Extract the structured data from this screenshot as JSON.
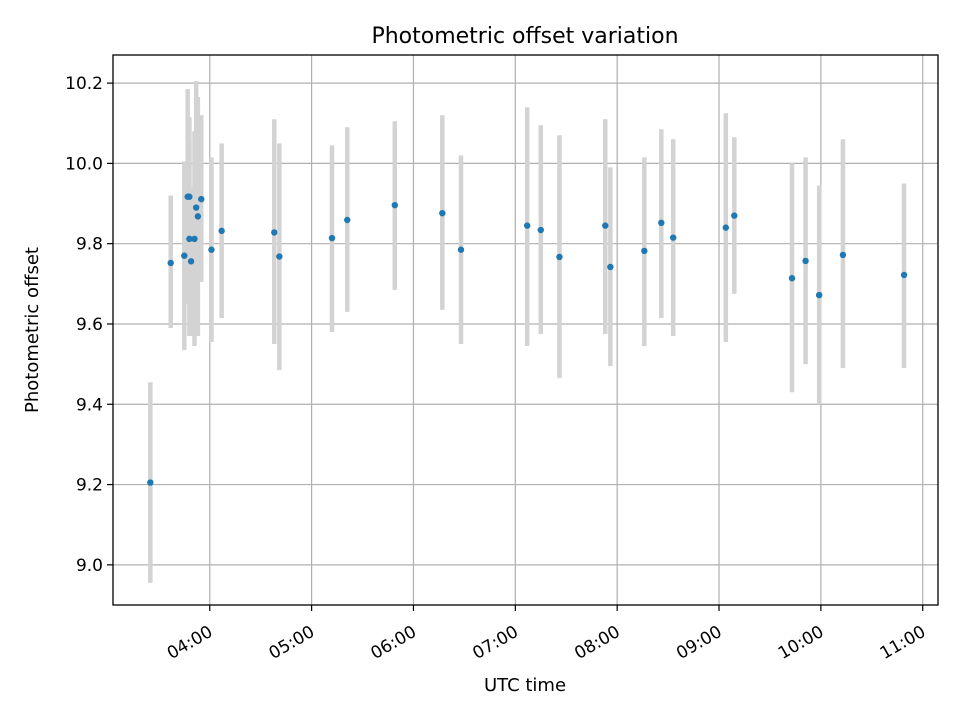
{
  "chart_data": {
    "type": "scatter",
    "title": "Photometric offset variation",
    "xlabel": "UTC time",
    "ylabel": "Photometric offset",
    "xlim": [
      "03:03",
      "11:09"
    ],
    "ylim": [
      8.9,
      10.27
    ],
    "grid": true,
    "colors": {
      "point": "#1f77b4",
      "errorbar": "#d3d3d3"
    },
    "x_ticks": [
      "04:00",
      "05:00",
      "06:00",
      "07:00",
      "08:00",
      "09:00",
      "10:00",
      "11:00"
    ],
    "y_ticks": [
      "9.0",
      "9.2",
      "9.4",
      "9.6",
      "9.8",
      "10.0",
      "10.2"
    ],
    "series": [
      {
        "points": [
          {
            "x": "03:25",
            "y": 9.205,
            "lo": 8.955,
            "hi": 9.455
          },
          {
            "x": "03:37",
            "y": 9.752,
            "lo": 9.59,
            "hi": 9.92
          },
          {
            "x": "03:45",
            "y": 9.77,
            "lo": 9.535,
            "hi": 10.005
          },
          {
            "x": "03:47",
            "y": 9.917,
            "lo": 9.65,
            "hi": 10.185
          },
          {
            "x": "03:48",
            "y": 9.917,
            "lo": 9.72,
            "hi": 10.115
          },
          {
            "x": "03:48",
            "y": 9.812,
            "lo": 9.57,
            "hi": 10.055
          },
          {
            "x": "03:49",
            "y": 9.756,
            "lo": 9.57,
            "hi": 9.94
          },
          {
            "x": "03:51",
            "y": 9.812,
            "lo": 9.545,
            "hi": 10.08
          },
          {
            "x": "03:52",
            "y": 9.89,
            "lo": 9.575,
            "hi": 10.205
          },
          {
            "x": "03:53",
            "y": 9.868,
            "lo": 9.57,
            "hi": 10.165
          },
          {
            "x": "03:55",
            "y": 9.911,
            "lo": 9.705,
            "hi": 10.12
          },
          {
            "x": "04:01",
            "y": 9.785,
            "lo": 9.555,
            "hi": 10.015
          },
          {
            "x": "04:07",
            "y": 9.832,
            "lo": 9.615,
            "hi": 10.05
          },
          {
            "x": "04:38",
            "y": 9.828,
            "lo": 9.55,
            "hi": 10.11
          },
          {
            "x": "04:41",
            "y": 9.768,
            "lo": 9.485,
            "hi": 10.05
          },
          {
            "x": "05:12",
            "y": 9.814,
            "lo": 9.58,
            "hi": 10.045
          },
          {
            "x": "05:21",
            "y": 9.859,
            "lo": 9.63,
            "hi": 10.09
          },
          {
            "x": "05:49",
            "y": 9.896,
            "lo": 9.685,
            "hi": 10.105
          },
          {
            "x": "06:17",
            "y": 9.876,
            "lo": 9.635,
            "hi": 10.12
          },
          {
            "x": "06:28",
            "y": 9.785,
            "lo": 9.55,
            "hi": 10.02
          },
          {
            "x": "07:07",
            "y": 9.845,
            "lo": 9.545,
            "hi": 10.14
          },
          {
            "x": "07:15",
            "y": 9.834,
            "lo": 9.575,
            "hi": 10.095
          },
          {
            "x": "07:26",
            "y": 9.767,
            "lo": 9.465,
            "hi": 10.07
          },
          {
            "x": "07:53",
            "y": 9.845,
            "lo": 9.575,
            "hi": 10.11
          },
          {
            "x": "07:56",
            "y": 9.742,
            "lo": 9.495,
            "hi": 9.99
          },
          {
            "x": "08:16",
            "y": 9.782,
            "lo": 9.545,
            "hi": 10.015
          },
          {
            "x": "08:26",
            "y": 9.852,
            "lo": 9.615,
            "hi": 10.085
          },
          {
            "x": "08:33",
            "y": 9.815,
            "lo": 9.57,
            "hi": 10.06
          },
          {
            "x": "09:04",
            "y": 9.84,
            "lo": 9.555,
            "hi": 10.125
          },
          {
            "x": "09:09",
            "y": 9.87,
            "lo": 9.675,
            "hi": 10.065
          },
          {
            "x": "09:43",
            "y": 9.714,
            "lo": 9.43,
            "hi": 10.0
          },
          {
            "x": "09:51",
            "y": 9.757,
            "lo": 9.5,
            "hi": 10.015
          },
          {
            "x": "09:59",
            "y": 9.672,
            "lo": 9.4,
            "hi": 9.945
          },
          {
            "x": "10:13",
            "y": 9.772,
            "lo": 9.49,
            "hi": 10.06
          },
          {
            "x": "10:49",
            "y": 9.722,
            "lo": 9.49,
            "hi": 9.95
          }
        ]
      }
    ]
  }
}
